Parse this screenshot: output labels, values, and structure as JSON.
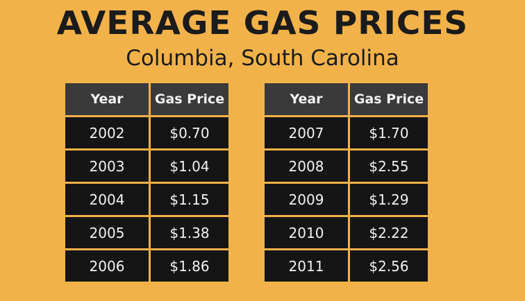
{
  "title": "AVERAGE GAS PRICES",
  "subtitle": "Columbia, South Carolina",
  "colors": {
    "background": "#f2b24a",
    "header_cell": "#3a3a3a",
    "data_cell": "#151515",
    "cell_text": "#f2f2f2",
    "title_text": "#1b1b1b"
  },
  "chart_data": {
    "type": "table",
    "title": "AVERAGE GAS PRICES",
    "subtitle": "Columbia, South Carolina",
    "columns": [
      "Year",
      "Gas Price"
    ],
    "tables": [
      {
        "rows": [
          [
            "2002",
            "$0.70"
          ],
          [
            "2003",
            "$1.04"
          ],
          [
            "2004",
            "$1.15"
          ],
          [
            "2005",
            "$1.38"
          ],
          [
            "2006",
            "$1.86"
          ]
        ]
      },
      {
        "rows": [
          [
            "2007",
            "$1.70"
          ],
          [
            "2008",
            "$2.55"
          ],
          [
            "2009",
            "$1.29"
          ],
          [
            "2010",
            "$2.22"
          ],
          [
            "2011",
            "$2.56"
          ]
        ]
      }
    ]
  }
}
